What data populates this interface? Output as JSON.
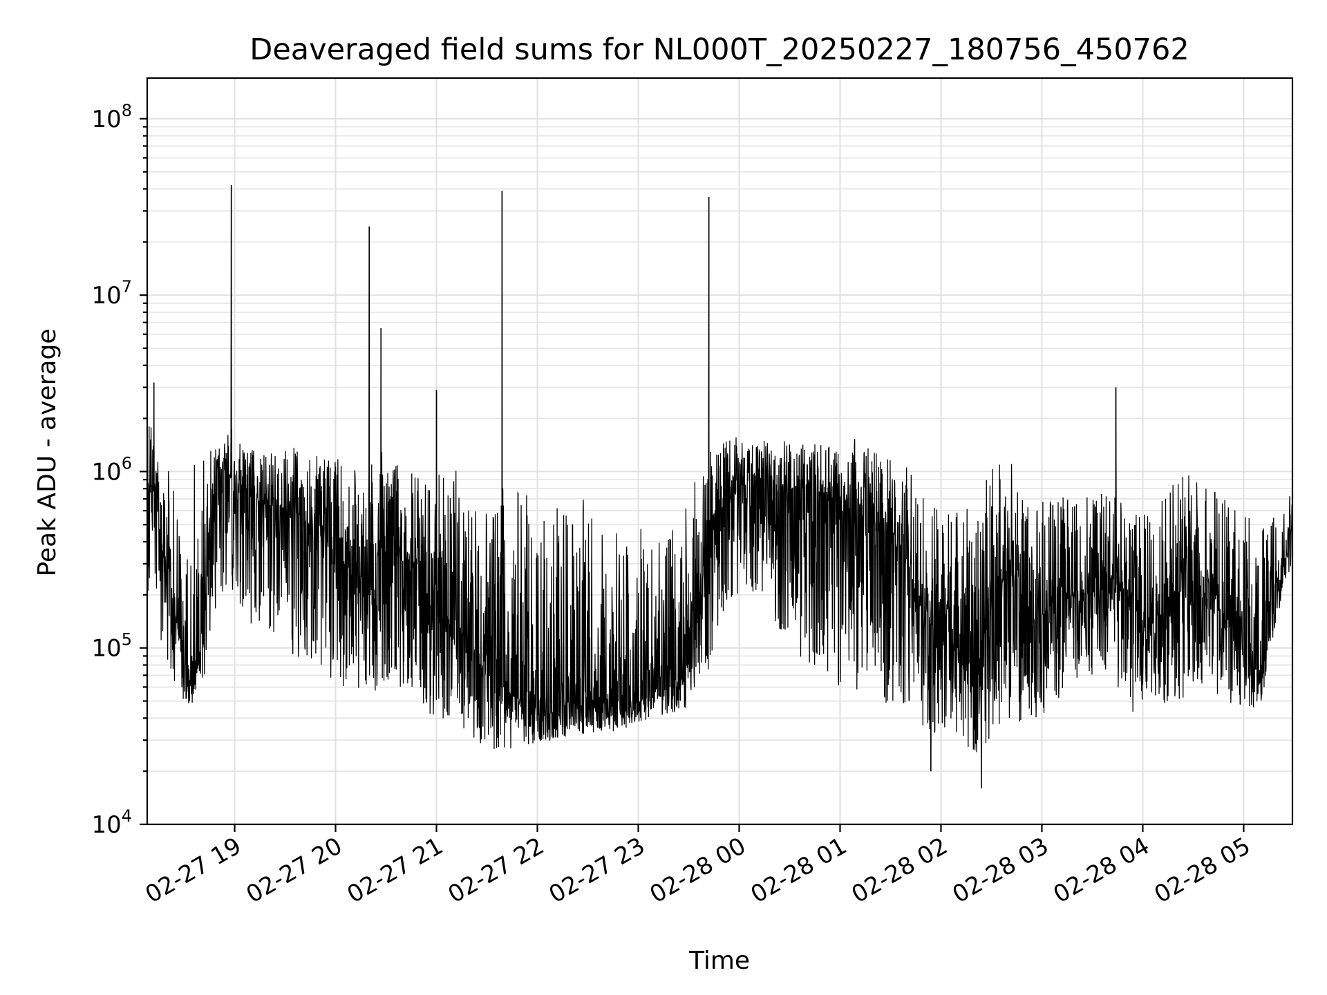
{
  "chart_data": {
    "type": "line",
    "title": "Deaveraged field sums for NL000T_20250227_180756_450762",
    "xlabel": "Time",
    "ylabel": "Peak ADU - average",
    "yscale": "log",
    "ylim": [
      10000,
      170000000
    ],
    "xlim": [
      "2025-02-27 18:08",
      "2025-02-28 05:29"
    ],
    "grid": true,
    "x_ticks": [
      {
        "value": "2025-02-27 19:00",
        "label": "02-27 19"
      },
      {
        "value": "2025-02-27 20:00",
        "label": "02-27 20"
      },
      {
        "value": "2025-02-27 21:00",
        "label": "02-27 21"
      },
      {
        "value": "2025-02-27 22:00",
        "label": "02-27 22"
      },
      {
        "value": "2025-02-27 23:00",
        "label": "02-27 23"
      },
      {
        "value": "2025-02-28 00:00",
        "label": "02-28 00"
      },
      {
        "value": "2025-02-28 01:00",
        "label": "02-28 01"
      },
      {
        "value": "2025-02-28 02:00",
        "label": "02-28 02"
      },
      {
        "value": "2025-02-28 03:00",
        "label": "02-28 03"
      },
      {
        "value": "2025-02-28 04:00",
        "label": "02-28 04"
      },
      {
        "value": "2025-02-28 05:00",
        "label": "02-28 05"
      }
    ],
    "y_ticks": [
      {
        "value": 10000,
        "base": "10",
        "exp": "4"
      },
      {
        "value": 100000,
        "base": "10",
        "exp": "5"
      },
      {
        "value": 1000000,
        "base": "10",
        "exp": "6"
      },
      {
        "value": 10000000,
        "base": "10",
        "exp": "7"
      },
      {
        "value": 100000000,
        "base": "10",
        "exp": "8"
      }
    ],
    "series_color": "#000000",
    "series": [
      {
        "x": [
          "2025-02-27 18:08",
          "2025-02-27 18:12",
          "2025-02-27 18:16",
          "2025-02-27 18:20",
          "2025-02-27 18:25",
          "2025-02-27 18:30",
          "2025-02-27 18:36",
          "2025-02-27 18:42",
          "2025-02-27 18:48",
          "2025-02-27 18:54",
          "2025-02-27 18:59",
          "2025-02-27 19:06",
          "2025-02-27 19:15",
          "2025-02-27 19:25",
          "2025-02-27 19:35",
          "2025-02-27 19:45",
          "2025-02-27 19:55",
          "2025-02-27 20:05",
          "2025-02-27 20:15",
          "2025-02-27 20:20",
          "2025-02-27 20:27",
          "2025-02-27 20:35",
          "2025-02-27 20:45",
          "2025-02-27 20:55",
          "2025-02-27 21:00",
          "2025-02-27 21:10",
          "2025-02-27 21:20",
          "2025-02-27 21:30",
          "2025-02-27 21:40",
          "2025-02-27 21:50",
          "2025-02-27 22:00",
          "2025-02-27 22:10",
          "2025-02-27 22:20",
          "2025-02-27 22:30",
          "2025-02-27 22:40",
          "2025-02-27 22:50",
          "2025-02-27 23:00",
          "2025-02-27 23:10",
          "2025-02-27 23:20",
          "2025-02-27 23:30",
          "2025-02-27 23:41",
          "2025-02-27 23:50",
          "2025-02-28 00:00",
          "2025-02-28 00:10",
          "2025-02-28 00:20",
          "2025-02-28 00:30",
          "2025-02-28 00:40",
          "2025-02-28 00:50",
          "2025-02-28 01:00",
          "2025-02-28 01:10",
          "2025-02-28 01:20",
          "2025-02-28 01:30",
          "2025-02-28 01:40",
          "2025-02-28 01:50",
          "2025-02-28 02:00",
          "2025-02-28 02:10",
          "2025-02-28 02:20",
          "2025-02-28 02:30",
          "2025-02-28 02:40",
          "2025-02-28 02:50",
          "2025-02-28 03:00",
          "2025-02-28 03:10",
          "2025-02-28 03:20",
          "2025-02-28 03:30",
          "2025-02-28 03:40",
          "2025-02-28 03:50",
          "2025-02-28 04:00",
          "2025-02-28 04:10",
          "2025-02-28 04:20",
          "2025-02-28 04:30",
          "2025-02-28 04:40",
          "2025-02-28 04:50",
          "2025-02-28 05:00",
          "2025-02-28 05:10",
          "2025-02-28 05:20",
          "2025-02-28 05:29"
        ],
        "y": [
          700000,
          900000,
          400000,
          300000,
          150000,
          80000,
          60000,
          200000,
          800000,
          1000000,
          900000,
          800000,
          700000,
          600000,
          600000,
          500000,
          400000,
          300000,
          250000,
          200000,
          400000,
          350000,
          300000,
          200000,
          150000,
          150000,
          100000,
          70000,
          60000,
          50000,
          45000,
          45000,
          50000,
          45000,
          50000,
          45000,
          50000,
          55000,
          60000,
          70000,
          300000,
          600000,
          800000,
          900000,
          900000,
          800000,
          800000,
          700000,
          700000,
          600000,
          500000,
          400000,
          300000,
          150000,
          120000,
          100000,
          90000,
          150000,
          300000,
          150000,
          150000,
          200000,
          200000,
          250000,
          250000,
          200000,
          120000,
          150000,
          200000,
          250000,
          200000,
          150000,
          100000,
          70000,
          200000,
          500000
        ],
        "envelope_low": [
          200000,
          300000,
          100000,
          80000,
          55000,
          50000,
          45000,
          70000,
          150000,
          200000,
          200000,
          150000,
          120000,
          100000,
          90000,
          80000,
          70000,
          60000,
          55000,
          50000,
          60000,
          55000,
          45000,
          40000,
          38000,
          33000,
          30000,
          27000,
          26000,
          27000,
          28000,
          30000,
          32000,
          32000,
          33000,
          34000,
          38000,
          40000,
          42000,
          45000,
          70000,
          150000,
          200000,
          200000,
          150000,
          100000,
          80000,
          70000,
          60000,
          55000,
          50000,
          48000,
          45000,
          35000,
          30000,
          28000,
          25000,
          30000,
          40000,
          35000,
          40000,
          50000,
          60000,
          70000,
          60000,
          45000,
          40000,
          45000,
          50000,
          55000,
          55000,
          50000,
          45000,
          45000,
          150000,
          300000
        ],
        "envelope_high": [
          2800000,
          1500000,
          1400000,
          1200000,
          800000,
          300000,
          1400000,
          1400000,
          1400000,
          1500000,
          1800000,
          1400000,
          1300000,
          1300000,
          1400000,
          1200000,
          1300000,
          1200000,
          1100000,
          1200000,
          1300000,
          1200000,
          1000000,
          900000,
          1000000,
          1100000,
          800000,
          600000,
          900000,
          800000,
          700000,
          700000,
          650000,
          750000,
          600000,
          500000,
          500000,
          500000,
          600000,
          700000,
          1400000,
          1500000,
          1600000,
          1600000,
          1500000,
          1500000,
          1500000,
          1400000,
          1400000,
          1600000,
          1300000,
          1200000,
          1100000,
          700000,
          600000,
          650000,
          700000,
          1200000,
          1400000,
          800000,
          700000,
          700000,
          750000,
          700000,
          800000,
          650000,
          600000,
          700000,
          900000,
          1000000,
          900000,
          700000,
          600000,
          500000,
          600000,
          800000
        ],
        "spikes": [
          {
            "x": "2025-02-27 18:58",
            "y": 42000000
          },
          {
            "x": "2025-02-27 20:20",
            "y": 24500000
          },
          {
            "x": "2025-02-27 20:27",
            "y": 6500000
          },
          {
            "x": "2025-02-27 21:00",
            "y": 2900000
          },
          {
            "x": "2025-02-27 21:39",
            "y": 39000000
          },
          {
            "x": "2025-02-27 23:42",
            "y": 36000000
          },
          {
            "x": "2025-02-28 03:44",
            "y": 3000000
          },
          {
            "x": "2025-02-27 18:12",
            "y": 3200000
          },
          {
            "x": "2025-02-28 02:24",
            "y": 16000
          },
          {
            "x": "2025-02-28 01:54",
            "y": 20000
          }
        ]
      }
    ]
  }
}
